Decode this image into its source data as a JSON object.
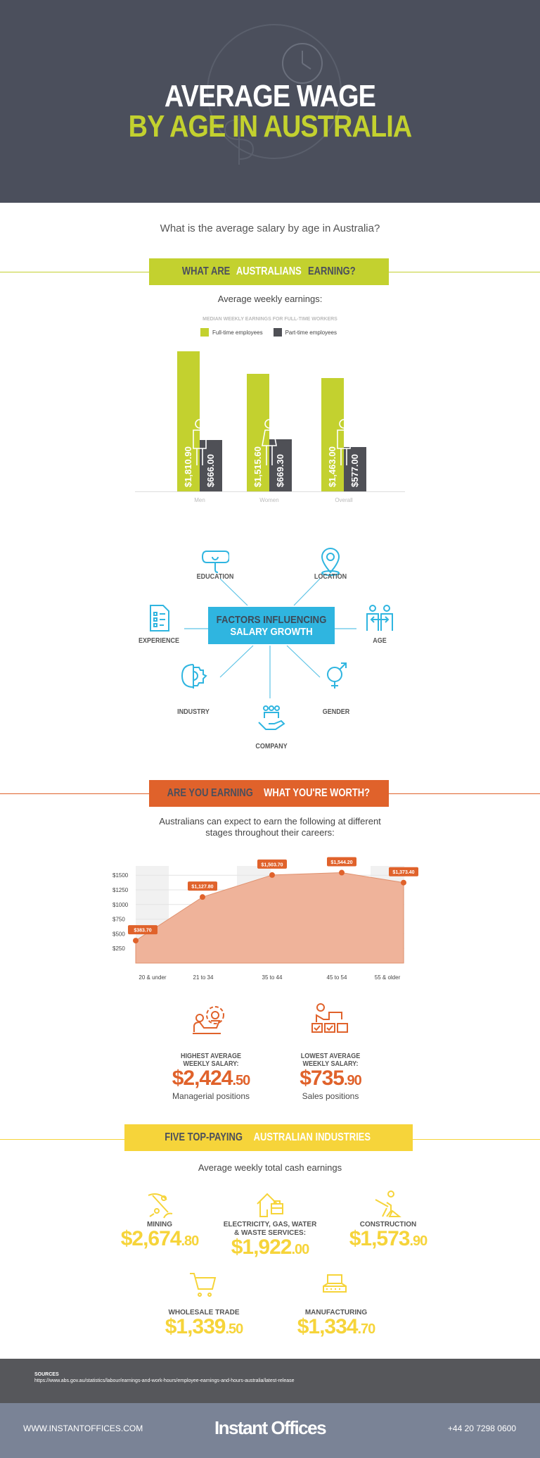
{
  "header": {
    "title_line1": "AVERAGE WAGE",
    "title_line2": "BY AGE IN AUSTRALIA"
  },
  "question": "What is the average salary by age in Australia?",
  "section1": {
    "banner_part1": "WHAT ARE ",
    "banner_highlight": "AUSTRALIANS",
    "banner_part2": " EARNING?",
    "subtitle": "Average weekly earnings:"
  },
  "colors": {
    "green": "#c3d12f",
    "dark": "#4f5056",
    "cyan": "#2fb5e0",
    "orange": "#e0622b",
    "yellow": "#f6d43a",
    "header": "#4b4f5c"
  },
  "chart_data": [
    {
      "type": "bar",
      "title": "MEDIAN WEEKLY EARNINGS FOR FULL-TIME WORKERS",
      "categories": [
        "Men",
        "Women",
        "Overall"
      ],
      "series": [
        {
          "name": "Full-time employees",
          "values": [
            1810.9,
            1515.6,
            1463.0
          ],
          "labels": [
            "$1,810.90",
            "$1,515.60",
            "$1,463.00"
          ]
        },
        {
          "name": "Part-time employees",
          "values": [
            666.0,
            669.3,
            577.0
          ],
          "labels": [
            "$666.00",
            "$669.30",
            "$577.00"
          ]
        }
      ],
      "legend": "top-center",
      "ylim": [
        0,
        1810.9
      ]
    },
    {
      "type": "area",
      "categories": [
        "20 & under",
        "21 to 34",
        "35 to 44",
        "45 to 54",
        "55 & older"
      ],
      "values": [
        383.7,
        1127.8,
        1503.7,
        1544.2,
        1373.4
      ],
      "labels": [
        "$383.70",
        "$1,127.80",
        "$1,503.70",
        "$1,544.20",
        "$1,373.40"
      ],
      "yticks": [
        "$250",
        "$500",
        "$750",
        "$1000",
        "$1250",
        "$1500"
      ],
      "ytick_values": [
        250,
        500,
        750,
        1000,
        1250,
        1500
      ],
      "ylim": [
        0,
        1650
      ],
      "grid": true
    }
  ],
  "factors": {
    "center_line1": "FACTORS INFLUENCING",
    "center_line2": "SALARY GROWTH",
    "items": [
      {
        "label": "EDUCATION",
        "icon": "diploma-icon"
      },
      {
        "label": "LOCATION",
        "icon": "location-pin-icon"
      },
      {
        "label": "EXPERIENCE",
        "icon": "document-icon"
      },
      {
        "label": "AGE",
        "icon": "people-icon"
      },
      {
        "label": "INDUSTRY",
        "icon": "brain-gear-icon"
      },
      {
        "label": "GENDER",
        "icon": "gender-icon"
      },
      {
        "label": "COMPANY",
        "icon": "team-hand-icon"
      }
    ]
  },
  "section2": {
    "banner_part1": "ARE YOU EARNING ",
    "banner_highlight": "WHAT YOU'RE WORTH?",
    "subtitle_line1": "Australians can expect to earn the following at different",
    "subtitle_line2": "stages throughout their careers:",
    "highest": {
      "label_line1": "HIGHEST AVERAGE",
      "label_line2": "WEEKLY SALARY:",
      "value_main": "$2,424",
      "value_cents": ".50",
      "desc": "Managerial positions"
    },
    "lowest": {
      "label_line1": "LOWEST AVERAGE",
      "label_line2": "WEEKLY SALARY:",
      "value_main": "$735",
      "value_cents": ".90",
      "desc": "Sales positions"
    }
  },
  "section3": {
    "banner_part1": "FIVE TOP-PAYING ",
    "banner_highlight": "AUSTRALIAN INDUSTRIES",
    "subtitle": "Average weekly total cash earnings",
    "industries": [
      {
        "label_line1": "",
        "label_line2": "MINING",
        "value_main": "$2,674",
        "value_cents": ".80",
        "icon": "pickaxe-icon"
      },
      {
        "label_line1": "ELECTRICITY, GAS, WATER",
        "label_line2": "& WASTE SERVICES:",
        "value_main": "$1,922",
        "value_cents": ".00",
        "icon": "house-toolbox-icon"
      },
      {
        "label_line1": "",
        "label_line2": "CONSTRUCTION",
        "value_main": "$1,573",
        "value_cents": ".90",
        "icon": "shovel-worker-icon"
      },
      {
        "label_line1": "",
        "label_line2": "WHOLESALE TRADE",
        "value_main": "$1,339",
        "value_cents": ".50",
        "icon": "cart-icon"
      },
      {
        "label_line1": "",
        "label_line2": "MANUFACTURING",
        "value_main": "$1,334",
        "value_cents": ".70",
        "icon": "conveyor-icon"
      }
    ]
  },
  "sources": {
    "title": "SOURCES",
    "url": "https://www.abs.gov.au/statistics/labour/earnings-and-work-hours/employee-earnings-and-hours-australia/latest-release"
  },
  "footer": {
    "website": "WWW.INSTANTOFFICES.COM",
    "brand": "Instant Offices",
    "phone": "+44 20 7298 0600"
  }
}
